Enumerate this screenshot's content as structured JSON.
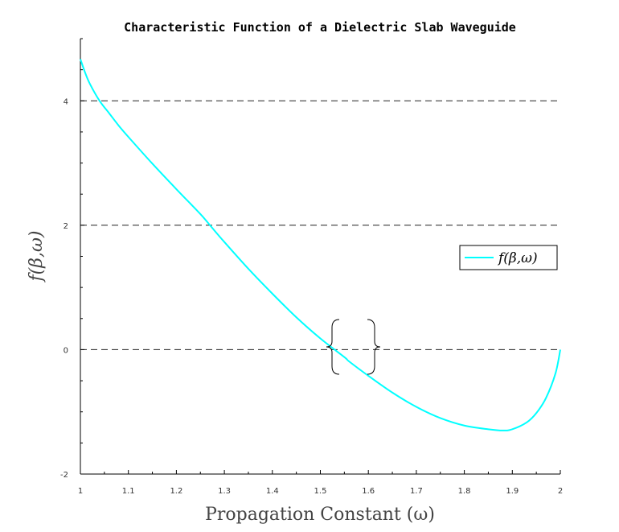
{
  "chart_data": {
    "type": "line",
    "title": "Characteristic Function of a Dielectric Slab Waveguide",
    "xlabel": "Propagation Constant (ω)",
    "ylabel": "f(β,ω)",
    "xlim": [
      1,
      2
    ],
    "ylim": [
      -2,
      5
    ],
    "xticks": [
      "1",
      "1.1",
      "1.2",
      "1.3",
      "1.4",
      "1.5",
      "1.6",
      "1.7",
      "1.8",
      "1.9",
      "2"
    ],
    "yticks": [
      "-2",
      "0",
      "2",
      "4"
    ],
    "ytick_values": [
      -2,
      0,
      2,
      4
    ],
    "grid": "horizontal dashed at y = 0, 2, 4",
    "legend_position": "right",
    "series": [
      {
        "name": "f(β,ω)",
        "color": "#00ffff",
        "x": [
          1.0,
          1.01,
          1.02,
          1.04,
          1.06,
          1.08,
          1.1,
          1.15,
          1.2,
          1.25,
          1.27,
          1.3,
          1.35,
          1.4,
          1.45,
          1.5,
          1.55,
          1.56,
          1.6,
          1.65,
          1.7,
          1.75,
          1.8,
          1.85,
          1.88,
          1.9,
          1.93,
          1.95,
          1.97,
          1.99,
          2.0
        ],
        "y": [
          4.67,
          4.45,
          4.27,
          4.0,
          3.8,
          3.6,
          3.42,
          2.99,
          2.58,
          2.18,
          2.0,
          1.73,
          1.3,
          0.9,
          0.52,
          0.18,
          -0.12,
          -0.19,
          -0.42,
          -0.69,
          -0.92,
          -1.1,
          -1.22,
          -1.28,
          -1.3,
          -1.28,
          -1.17,
          -1.02,
          -0.78,
          -0.38,
          0.0
        ]
      }
    ],
    "annotation": "braces bracketing the zero crossing between x ≈ 1.52 and x ≈ 1.62"
  }
}
